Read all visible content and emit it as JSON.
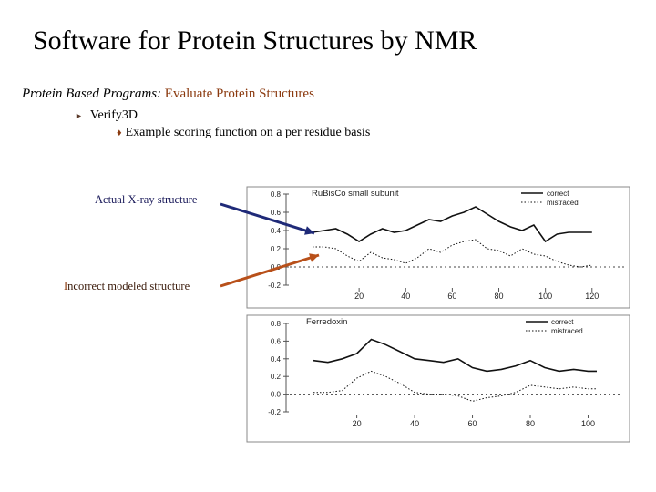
{
  "slide": {
    "title": "Software for Protein Structures by NMR",
    "subtitle_lead": "Protein Based Programs: ",
    "subtitle_accent": "Evaluate Protein Structures",
    "bullet1": "Verify3D",
    "bullet2": "Example scoring function on a per residue basis",
    "bullet1_icon": "triangle-right-icon",
    "bullet2_icon": "diamond-icon"
  },
  "annotations": {
    "xray_label": "Actual X-ray structure",
    "incorrect_first": "I",
    "incorrect_rest": "ncorrect modeled structure",
    "xray_arrow_color": "#1f2a78",
    "incorrect_arrow_color": "#b8501a"
  },
  "chart_data": [
    {
      "type": "line",
      "title": "RuBisCo small subunit",
      "ytick_labels": [
        "0.8",
        "0.6",
        "0.4",
        "0.2",
        "0.0",
        "-0.2"
      ],
      "xtick_labels": [
        "20",
        "40",
        "60",
        "80",
        "100",
        "120"
      ],
      "ylim": [
        -0.2,
        0.8
      ],
      "xlim": [
        0,
        124
      ],
      "legend": "top-right",
      "series": [
        {
          "name": "correct",
          "style": "solid",
          "x": [
            0,
            5,
            10,
            15,
            20,
            25,
            30,
            35,
            40,
            45,
            50,
            55,
            60,
            65,
            70,
            75,
            80,
            85,
            90,
            95,
            100,
            105,
            110,
            115,
            120
          ],
          "y": [
            0.38,
            0.4,
            0.42,
            0.36,
            0.28,
            0.36,
            0.42,
            0.38,
            0.4,
            0.46,
            0.52,
            0.5,
            0.56,
            0.6,
            0.66,
            0.58,
            0.5,
            0.44,
            0.4,
            0.46,
            0.28,
            0.36,
            0.38,
            0.38,
            0.38
          ]
        },
        {
          "name": "mistraced",
          "style": "dotted",
          "x": [
            0,
            5,
            10,
            15,
            20,
            25,
            30,
            35,
            40,
            45,
            50,
            55,
            60,
            65,
            70,
            75,
            80,
            85,
            90,
            95,
            100,
            105,
            110,
            115,
            120
          ],
          "y": [
            0.22,
            0.22,
            0.2,
            0.12,
            0.06,
            0.16,
            0.1,
            0.08,
            0.04,
            0.1,
            0.2,
            0.16,
            0.24,
            0.28,
            0.3,
            0.2,
            0.18,
            0.12,
            0.2,
            0.14,
            0.12,
            0.06,
            0.02,
            0.0,
            0.02
          ]
        }
      ]
    },
    {
      "type": "line",
      "title": "Ferredoxin",
      "ytick_labels": [
        "0.8",
        "0.6",
        "0.4",
        "0.2",
        "0.0",
        "-0.2"
      ],
      "xtick_labels": [
        "20",
        "40",
        "60",
        "80",
        "100"
      ],
      "ylim": [
        -0.2,
        0.8
      ],
      "xlim": [
        5,
        103
      ],
      "legend": "top-right",
      "series": [
        {
          "name": "correct",
          "style": "solid",
          "x": [
            5,
            10,
            15,
            20,
            25,
            30,
            35,
            40,
            45,
            50,
            55,
            60,
            65,
            70,
            75,
            80,
            85,
            90,
            95,
            100,
            103
          ],
          "y": [
            0.38,
            0.36,
            0.4,
            0.46,
            0.62,
            0.56,
            0.48,
            0.4,
            0.38,
            0.36,
            0.4,
            0.3,
            0.26,
            0.28,
            0.32,
            0.38,
            0.3,
            0.26,
            0.28,
            0.26,
            0.26
          ]
        },
        {
          "name": "mistraced",
          "style": "dotted",
          "x": [
            5,
            10,
            15,
            20,
            25,
            30,
            35,
            40,
            45,
            50,
            55,
            60,
            65,
            70,
            75,
            80,
            85,
            90,
            95,
            100,
            103
          ],
          "y": [
            0.02,
            0.02,
            0.04,
            0.18,
            0.26,
            0.2,
            0.12,
            0.02,
            0.0,
            0.0,
            -0.02,
            -0.08,
            -0.04,
            -0.02,
            0.02,
            0.1,
            0.08,
            0.06,
            0.08,
            0.06,
            0.06
          ]
        }
      ]
    }
  ]
}
